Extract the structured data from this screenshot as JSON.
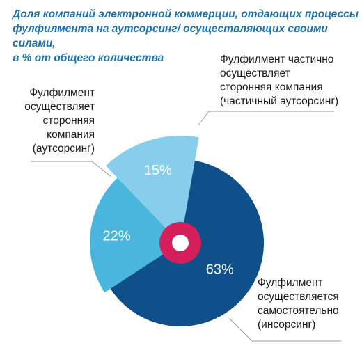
{
  "title_lines": [
    "Доля компаний электронной коммерции, отдающих процессы",
    "фулфилмента на аутсорсинг/ осуществляющих своими силами,",
    "в % от общего количества"
  ],
  "chart_data": {
    "type": "pie",
    "title": "Доля компаний электронной коммерции, отдающих процессы фулфилмента на аутсорсинг/ осуществляющих своими силами, в % от общего количества",
    "unit": "%",
    "slices": [
      {
        "label": "Фулфилмент осуществляется самостоятельно (инсорсинг)",
        "value": 63,
        "value_label": "63%",
        "color": "#0f4f8a",
        "exploded": false
      },
      {
        "label": "Фулфилмент осуществляет сторонняя компания (аутсорсинг)",
        "value": 22,
        "value_label": "22%",
        "color": "#4bb6dd",
        "exploded": true
      },
      {
        "label": "Фулфилмент частично осуществляет сторонняя компания (частичный аутсорсинг)",
        "value": 15,
        "value_label": "15%",
        "color": "#87cdec",
        "exploded": true
      }
    ],
    "center_ring_color": "#d41f5b"
  },
  "labels": {
    "outsource": [
      "Фулфилмент",
      "осуществляет",
      "сторонняя",
      "компания",
      "(аутсорсинг)"
    ],
    "partial": [
      "Фулфилмент частично",
      "осуществляет",
      "сторонняя компания",
      "(частичный аутсорсинг)"
    ],
    "insource": [
      "Фулфилмент",
      "осуществляется",
      "самостоятельно",
      "(инсорсинг)"
    ]
  }
}
